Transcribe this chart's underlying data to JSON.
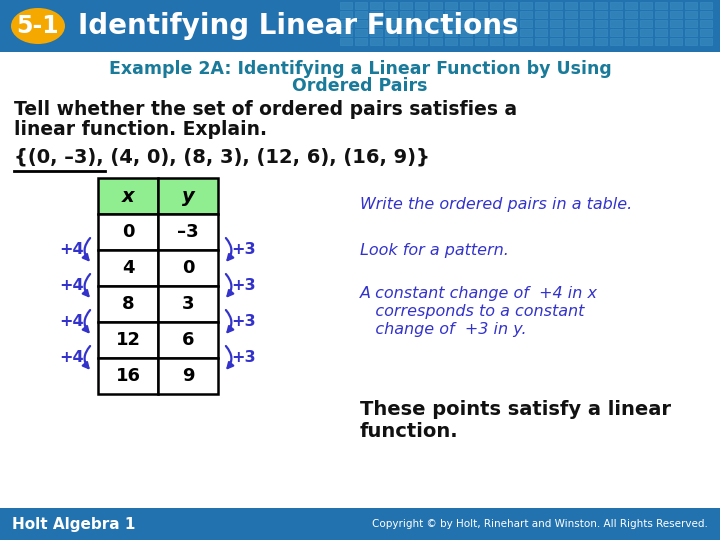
{
  "header_bg": "#2272b0",
  "header_text": "Identifying Linear Functions",
  "header_number": "5-1",
  "header_number_bg": "#f5a800",
  "example_title_line1": "Example 2A: Identifying a Linear Function by Using",
  "example_title_line2": "Ordered Pairs",
  "example_title_color": "#1a7a9a",
  "body_bg": "#ffffff",
  "tell_text_line1": "Tell whether the set of ordered pairs satisfies a",
  "tell_text_line2": "linear function. Explain.",
  "set_text": "{(0, –3), (4, 0), (8, 3), (12, 6), (16, 9)}",
  "table_x": [
    "0",
    "4",
    "8",
    "12",
    "16"
  ],
  "table_y": [
    "–3",
    "0",
    "3",
    "6",
    "9"
  ],
  "header_row_bg": "#90ee90",
  "table_border": "#000000",
  "arrow_color": "#3333cc",
  "left_labels": [
    "+4",
    "+4",
    "+4",
    "+4"
  ],
  "right_labels": [
    "+3",
    "+3",
    "+3",
    "+3"
  ],
  "note1": "Write the ordered pairs in a table.",
  "note2": "Look for a pattern.",
  "note3_line1": "A constant change of  +4 in x",
  "note3_line2": "   corresponds to a constant",
  "note3_line3": "   change of  +3 in y.",
  "note4_line1": "These points satisfy a linear",
  "note4_line2": "function.",
  "note_color": "#3333cc",
  "note4_color": "#111111",
  "footer_bg": "#2272b0",
  "footer_left": "Holt Algebra 1",
  "footer_right": "Copyright © by Holt, Rinehart and Winston. All Rights Reserved."
}
